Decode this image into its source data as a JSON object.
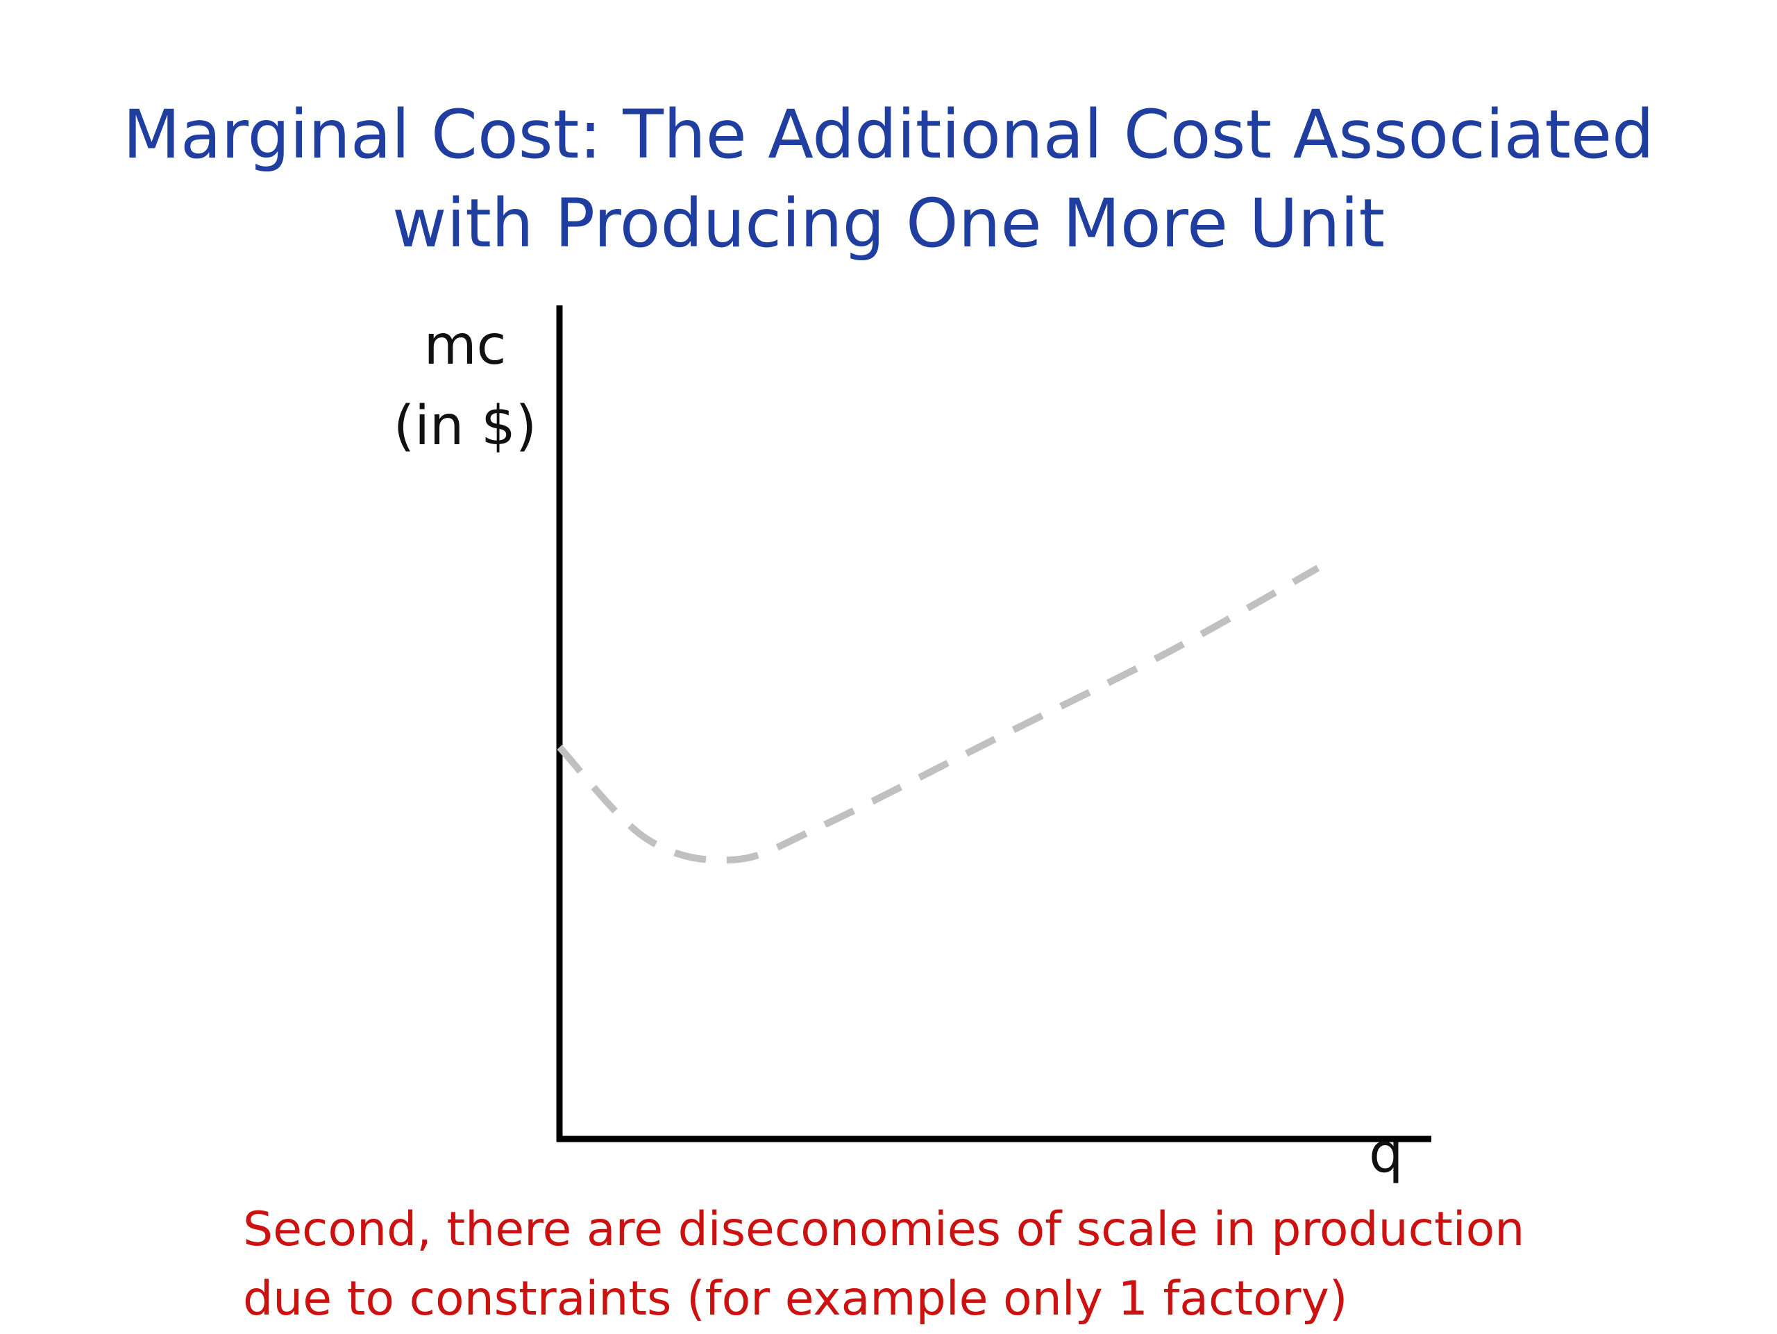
{
  "slide": {
    "title_line1": "Marginal Cost: The Additional Cost Associated",
    "title_line2": "with Producing One More Unit",
    "caption_line1": "Second, there are diseconomies of scale in production",
    "caption_line2": "due to constraints (for example only 1 factory)"
  },
  "chart_data": {
    "type": "line",
    "title": "",
    "ylabel_line1": "mc",
    "ylabel_line2": "(in $)",
    "xlabel": "q",
    "grid": false,
    "legend": "none",
    "series": [
      {
        "style": "dashed",
        "color": "#c0c0c0",
        "description_points": [
          {
            "q": 0.0,
            "mc": 0.47
          },
          {
            "q": 0.1,
            "mc": 0.36
          },
          {
            "q": 0.2,
            "mc": 0.335
          },
          {
            "q": 0.3,
            "mc": 0.375
          },
          {
            "q": 0.5,
            "mc": 0.48
          },
          {
            "q": 0.7,
            "mc": 0.585
          },
          {
            "q": 0.87,
            "mc": 0.685
          }
        ]
      }
    ]
  },
  "colors": {
    "title": "#1f3ea0",
    "caption": "#cc1111",
    "axis": "#000000",
    "curve": "#c0c0c0"
  }
}
